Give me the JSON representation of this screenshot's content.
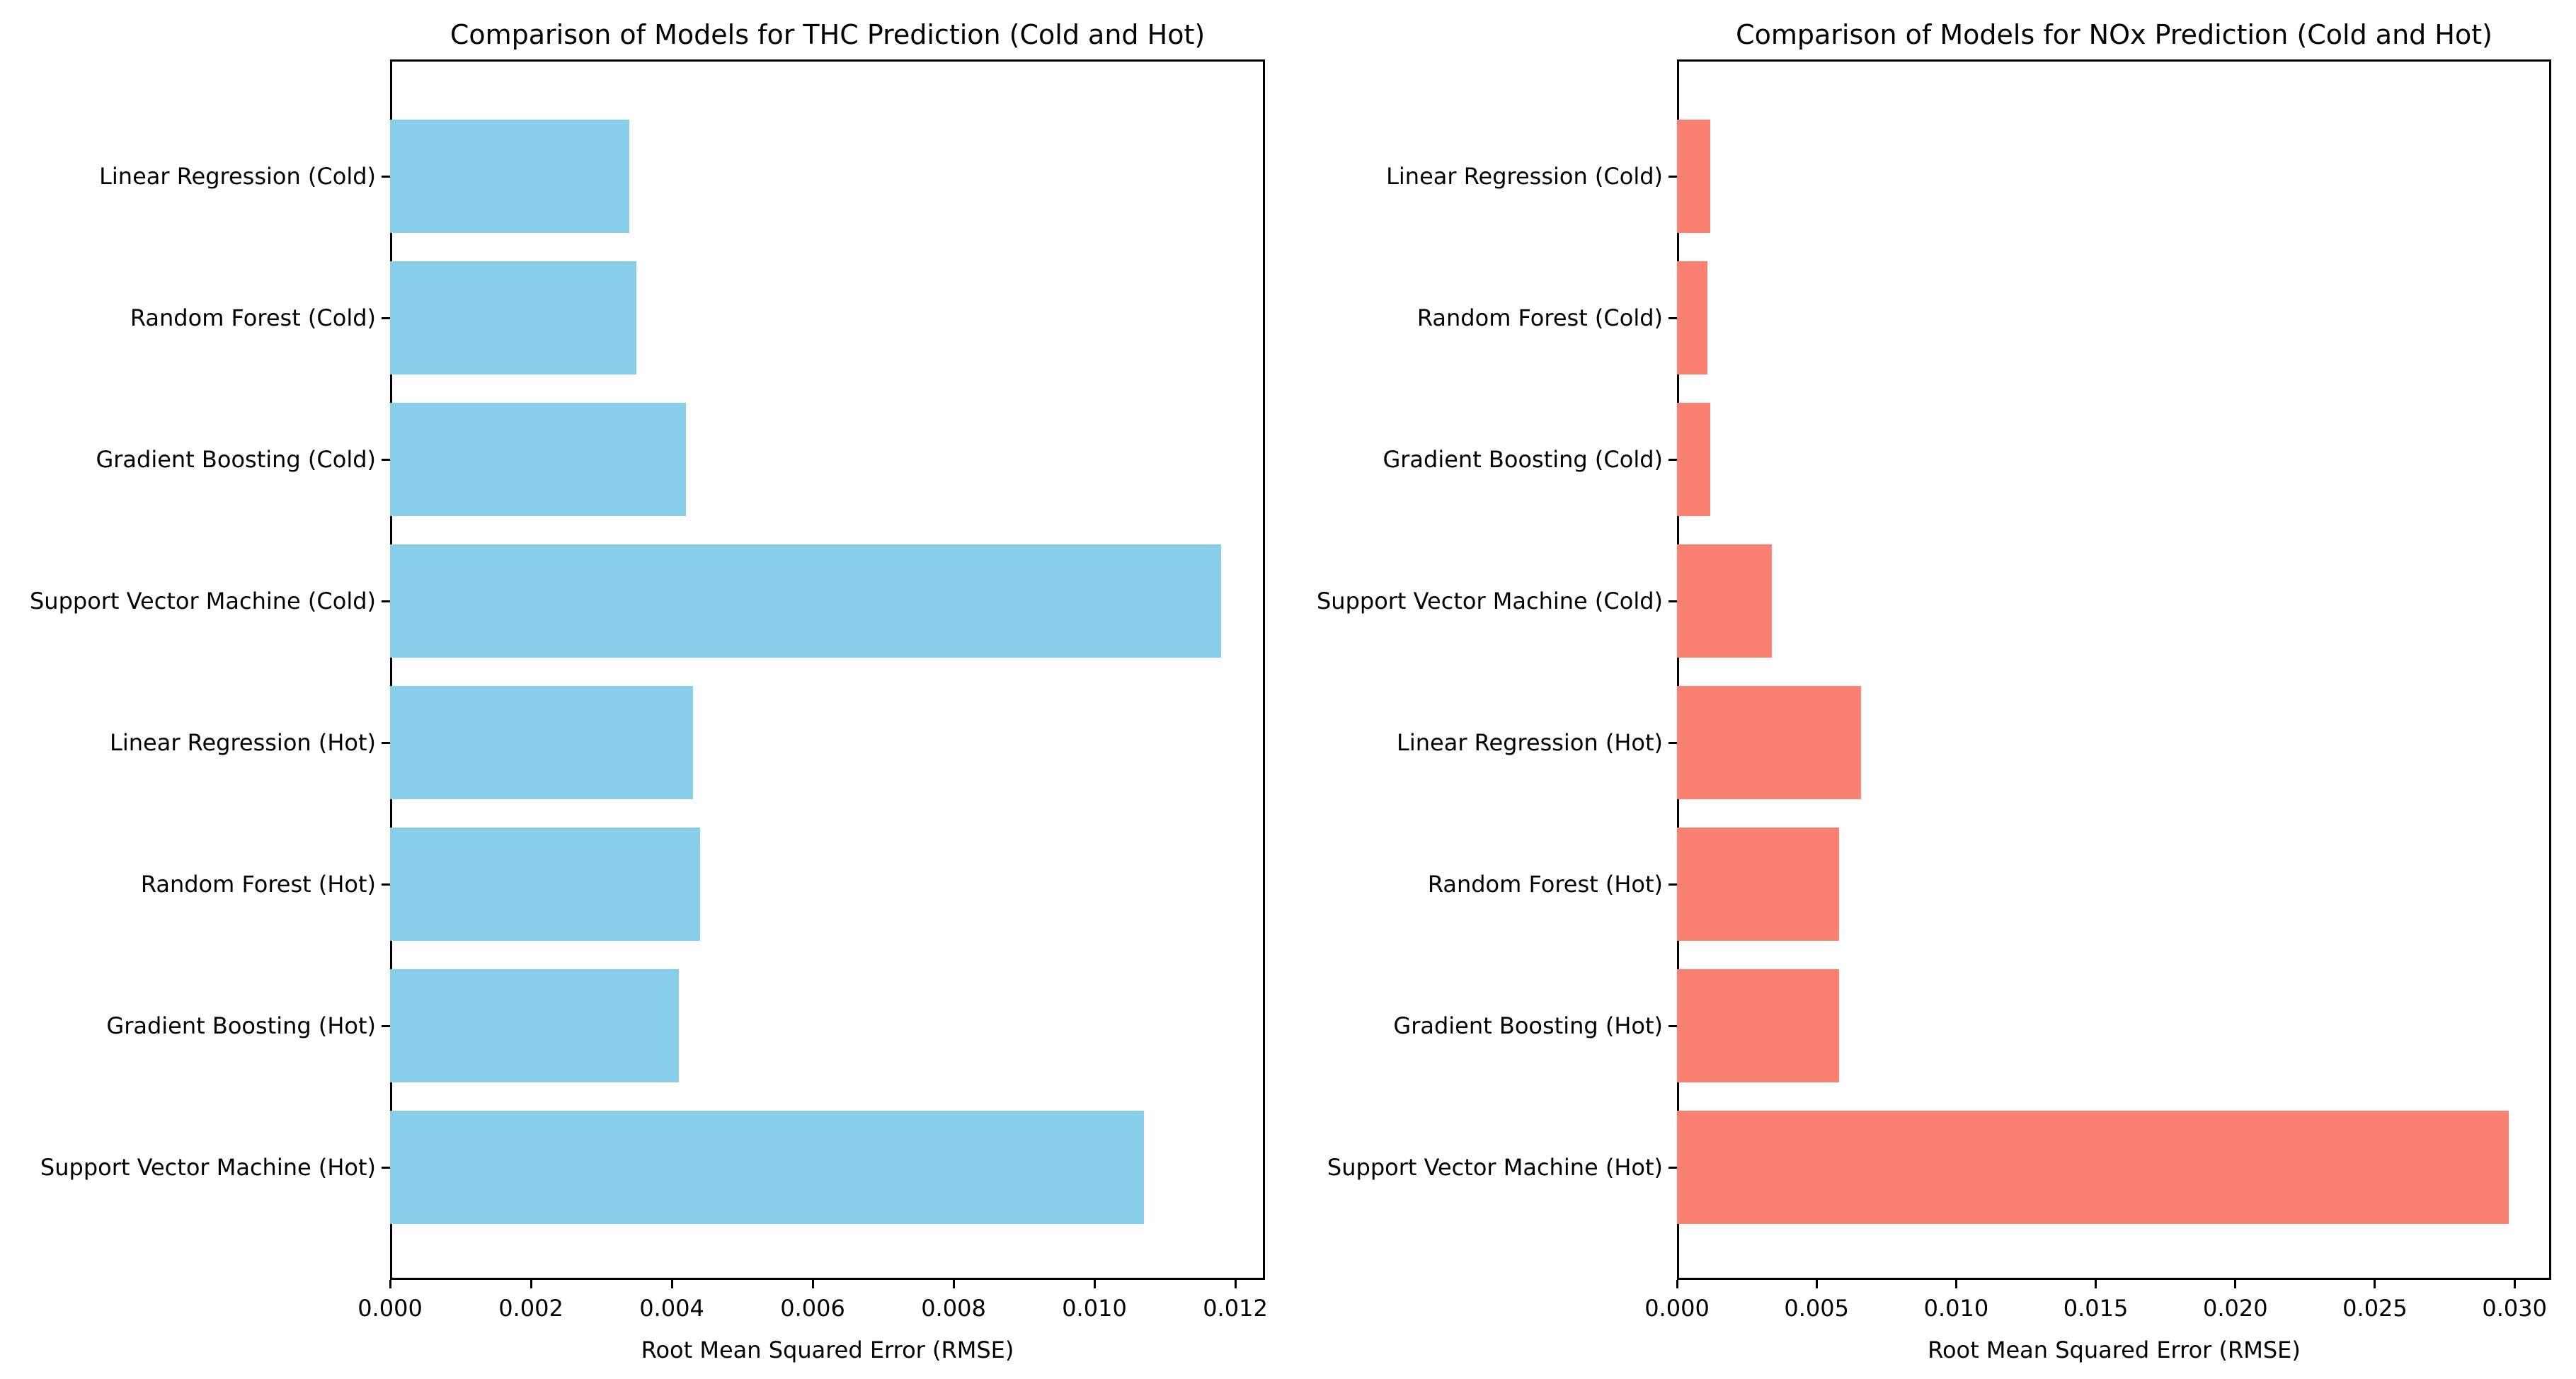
{
  "figure": {
    "background": "#ffffff",
    "text_color": "#000000"
  },
  "chart_data": [
    {
      "type": "bar",
      "orientation": "horizontal",
      "title": "Comparison of Models for THC Prediction (Cold and Hot)",
      "xlabel": "Root Mean Squared Error (RMSE)",
      "ylabel": "",
      "grid": false,
      "legend": null,
      "bar_color": "#87CEEB",
      "bar_color_name": "skyblue",
      "categories": [
        "Linear Regression (Cold)",
        "Random Forest (Cold)",
        "Gradient Boosting (Cold)",
        "Support Vector Machine (Cold)",
        "Linear Regression (Hot)",
        "Random Forest (Hot)",
        "Gradient Boosting (Hot)",
        "Support Vector Machine (Hot)"
      ],
      "values": [
        0.0034,
        0.0035,
        0.0042,
        0.0118,
        0.0043,
        0.0044,
        0.0041,
        0.0107
      ],
      "xlim": [
        0,
        0.012422
      ],
      "xticks": [
        0,
        0.002,
        0.004,
        0.006,
        0.008,
        0.01,
        0.012
      ],
      "xtick_labels": [
        "0.000",
        "0.002",
        "0.004",
        "0.006",
        "0.008",
        "0.010",
        "0.012"
      ]
    },
    {
      "type": "bar",
      "orientation": "horizontal",
      "title": "Comparison of Models for NOx Prediction (Cold and Hot)",
      "xlabel": "Root Mean Squared Error (RMSE)",
      "ylabel": "",
      "grid": false,
      "legend": null,
      "bar_color": "#FA8072",
      "bar_color_name": "salmon",
      "categories": [
        "Linear Regression (Cold)",
        "Random Forest (Cold)",
        "Gradient Boosting (Cold)",
        "Support Vector Machine (Cold)",
        "Linear Regression (Hot)",
        "Random Forest (Hot)",
        "Gradient Boosting (Hot)",
        "Support Vector Machine (Hot)"
      ],
      "values": [
        0.0012,
        0.0011,
        0.0012,
        0.0034,
        0.0066,
        0.0058,
        0.0058,
        0.0298
      ],
      "xlim": [
        0,
        0.031314
      ],
      "xticks": [
        0,
        0.005,
        0.01,
        0.015,
        0.02,
        0.025,
        0.03
      ],
      "xtick_labels": [
        "0.000",
        "0.005",
        "0.010",
        "0.015",
        "0.020",
        "0.025",
        "0.030"
      ]
    }
  ]
}
